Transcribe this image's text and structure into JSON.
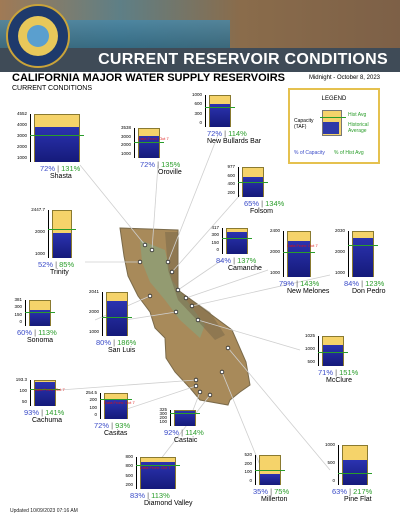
{
  "header": {
    "banner_title": "CURRENT RESERVOIR CONDITIONS"
  },
  "page": {
    "title": "CALIFORNIA MAJOR WATER SUPPLY RESERVOIRS",
    "subtitle": "CURRENT CONDITIONS",
    "date": "Midnight - October 8, 2023",
    "updated": "Updated 10/09/2023 07:16 AM"
  },
  "legend": {
    "title": "LEGEND",
    "capacity_label": "Capacity (TAF)",
    "hist_avg_label": "Hist Avg",
    "historical_average_label": "Historical Average",
    "pct_capacity_label": "% of Capacity",
    "pct_hist_label": "% of Hist Avg"
  },
  "colors": {
    "capacity": "#f5d36a",
    "storage": "#2b33b0",
    "hist_avg": "#2a9d2a",
    "pct_capacity": "#3a4bc8"
  },
  "map_note": "",
  "reservoirs": [
    {
      "name": "Shasta",
      "capacity_label": "4552",
      "ticks": [
        "4000",
        "3000",
        "2000",
        "1000"
      ],
      "pct_capacity": 72,
      "pct_hist": 131,
      "dfp": ""
    },
    {
      "name": "Oroville",
      "capacity_label": "3538",
      "ticks": [
        "3000",
        "2000",
        "1000"
      ],
      "pct_capacity": 72,
      "pct_hist": 135,
      "dfp": "Data From: Oct 7"
    },
    {
      "name": "New Bullards Bar",
      "capacity_label": "",
      "ticks": [
        "1000",
        "600",
        "300",
        "0"
      ],
      "pct_capacity": 72,
      "pct_hist": 114,
      "dfp": ""
    },
    {
      "name": "Folsom",
      "capacity_label": "977",
      "ticks": [
        "600",
        "400",
        "200"
      ],
      "pct_capacity": 65,
      "pct_hist": 134,
      "dfp": ""
    },
    {
      "name": "Trinity",
      "capacity_label": "2447.7",
      "ticks": [
        "2000",
        "1000"
      ],
      "pct_capacity": 52,
      "pct_hist": 85,
      "dfp": ""
    },
    {
      "name": "Camanche",
      "capacity_label": "417",
      "ticks": [
        "300",
        "150",
        "0"
      ],
      "pct_capacity": 84,
      "pct_hist": 137,
      "dfp": ""
    },
    {
      "name": "New Melones",
      "capacity_label": "2400",
      "ticks": [
        "2000",
        "1000"
      ],
      "pct_capacity": 79,
      "pct_hist": 143,
      "dfp": "Data From: Oct 7"
    },
    {
      "name": "Don Pedro",
      "capacity_label": "2030",
      "ticks": [
        "2000",
        "1000"
      ],
      "pct_capacity": 84,
      "pct_hist": 123,
      "dfp": ""
    },
    {
      "name": "Sonoma",
      "capacity_label": "381",
      "ticks": [
        "300",
        "150",
        "0"
      ],
      "pct_capacity": 60,
      "pct_hist": 113,
      "dfp": ""
    },
    {
      "name": "San Luis",
      "capacity_label": "2041",
      "ticks": [
        "2000",
        "1000"
      ],
      "pct_capacity": 80,
      "pct_hist": 186,
      "dfp": ""
    },
    {
      "name": "McClure",
      "capacity_label": "1025",
      "ticks": [
        "1000",
        "500"
      ],
      "pct_capacity": 71,
      "pct_hist": 151,
      "dfp": ""
    },
    {
      "name": "Cachuma",
      "capacity_label": "193.3",
      "ticks": [
        "100",
        "50"
      ],
      "pct_capacity": 93,
      "pct_hist": 141,
      "dfp": "Data From: Oct 7"
    },
    {
      "name": "Castaic",
      "capacity_label": "325",
      "ticks": [
        "300",
        "200",
        "100"
      ],
      "pct_capacity": 92,
      "pct_hist": 114,
      "dfp": ""
    },
    {
      "name": "Casitas",
      "capacity_label": "254.5",
      "ticks": [
        "200",
        "100",
        "0"
      ],
      "pct_capacity": 72,
      "pct_hist": 93,
      "dfp": "Data From: Oct 7"
    },
    {
      "name": "Diamond Valley",
      "capacity_label": "800",
      "ticks": [
        "800",
        "500",
        "200"
      ],
      "pct_capacity": 83,
      "pct_hist": 113,
      "dfp": "Data From: Oct 7"
    },
    {
      "name": "Millerton",
      "capacity_label": "520",
      "ticks": [
        "200",
        "100",
        "0"
      ],
      "pct_capacity": 35,
      "pct_hist": 75,
      "dfp": ""
    },
    {
      "name": "Pine Flat",
      "capacity_label": "1000",
      "ticks": [
        "500",
        "0"
      ],
      "pct_capacity": 63,
      "pct_hist": 217,
      "dfp": ""
    }
  ]
}
